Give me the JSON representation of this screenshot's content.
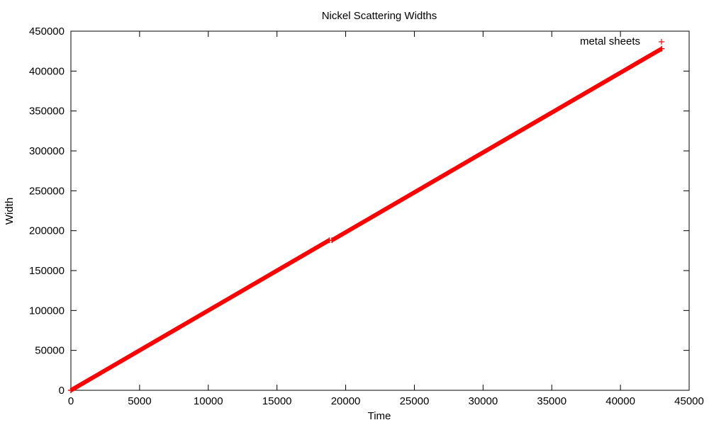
{
  "chart_data": {
    "type": "scatter",
    "title": "Nickel Scattering Widths",
    "xlabel": "Time",
    "ylabel": "Width",
    "xlim": [
      0,
      45000
    ],
    "ylim": [
      0,
      450000
    ],
    "xticks": [
      0,
      5000,
      10000,
      15000,
      20000,
      25000,
      30000,
      35000,
      40000,
      45000
    ],
    "yticks": [
      0,
      50000,
      100000,
      150000,
      200000,
      250000,
      300000,
      350000,
      400000,
      450000
    ],
    "grid": false,
    "legend_position": "top-right",
    "series": [
      {
        "name": "metal sheets",
        "color": "#ff0000",
        "marker": "plus",
        "segments": [
          {
            "x_start": 0,
            "x_end": 18800,
            "slope": 10.0,
            "intercept": 0
          },
          {
            "x_start": 19000,
            "x_end": 43000,
            "slope": 10.0,
            "intercept": -2000
          }
        ],
        "endpoints": {
          "x": [
            0,
            18800,
            19000,
            43000
          ],
          "y": [
            0,
            188000,
            188000,
            428000
          ]
        }
      }
    ]
  }
}
